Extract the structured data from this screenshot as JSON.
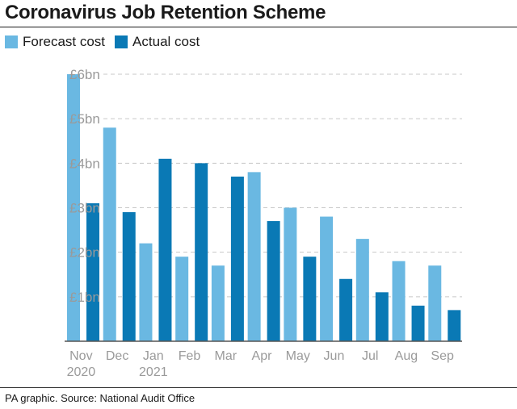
{
  "title": "Coronavirus Job Retention Scheme",
  "source": "PA graphic. Source: National Audit Office",
  "colors": {
    "forecast": "#6ab8e2",
    "actual": "#0a79b5",
    "grid": "#c8c8c8",
    "tick_text": "#9a9a9a"
  },
  "chart_data": {
    "type": "bar",
    "title": "Coronavirus Job Retention Scheme",
    "xlabel": "",
    "ylabel": "",
    "ylim": [
      0,
      6
    ],
    "yticks": [
      "£1bn",
      "£2bn",
      "£3bn",
      "£4bn",
      "£5bn",
      "£6bn"
    ],
    "categories": [
      [
        "Nov",
        "2020"
      ],
      [
        "Dec",
        ""
      ],
      [
        "Jan",
        "2021"
      ],
      [
        "Feb",
        ""
      ],
      [
        "Mar",
        ""
      ],
      [
        "Apr",
        ""
      ],
      [
        "May",
        ""
      ],
      [
        "Jun",
        ""
      ],
      [
        "Jul",
        ""
      ],
      [
        "Aug",
        ""
      ],
      [
        "Sep",
        ""
      ]
    ],
    "series": [
      {
        "name": "Forecast cost",
        "values": [
          6.0,
          4.8,
          2.2,
          1.9,
          1.7,
          3.8,
          3.0,
          2.8,
          2.3,
          1.8,
          1.7
        ]
      },
      {
        "name": "Actual cost",
        "values": [
          3.1,
          2.9,
          4.1,
          4.0,
          3.7,
          2.7,
          1.9,
          1.4,
          1.1,
          0.8,
          0.7
        ]
      }
    ],
    "grid": true,
    "legend": "top-left"
  }
}
